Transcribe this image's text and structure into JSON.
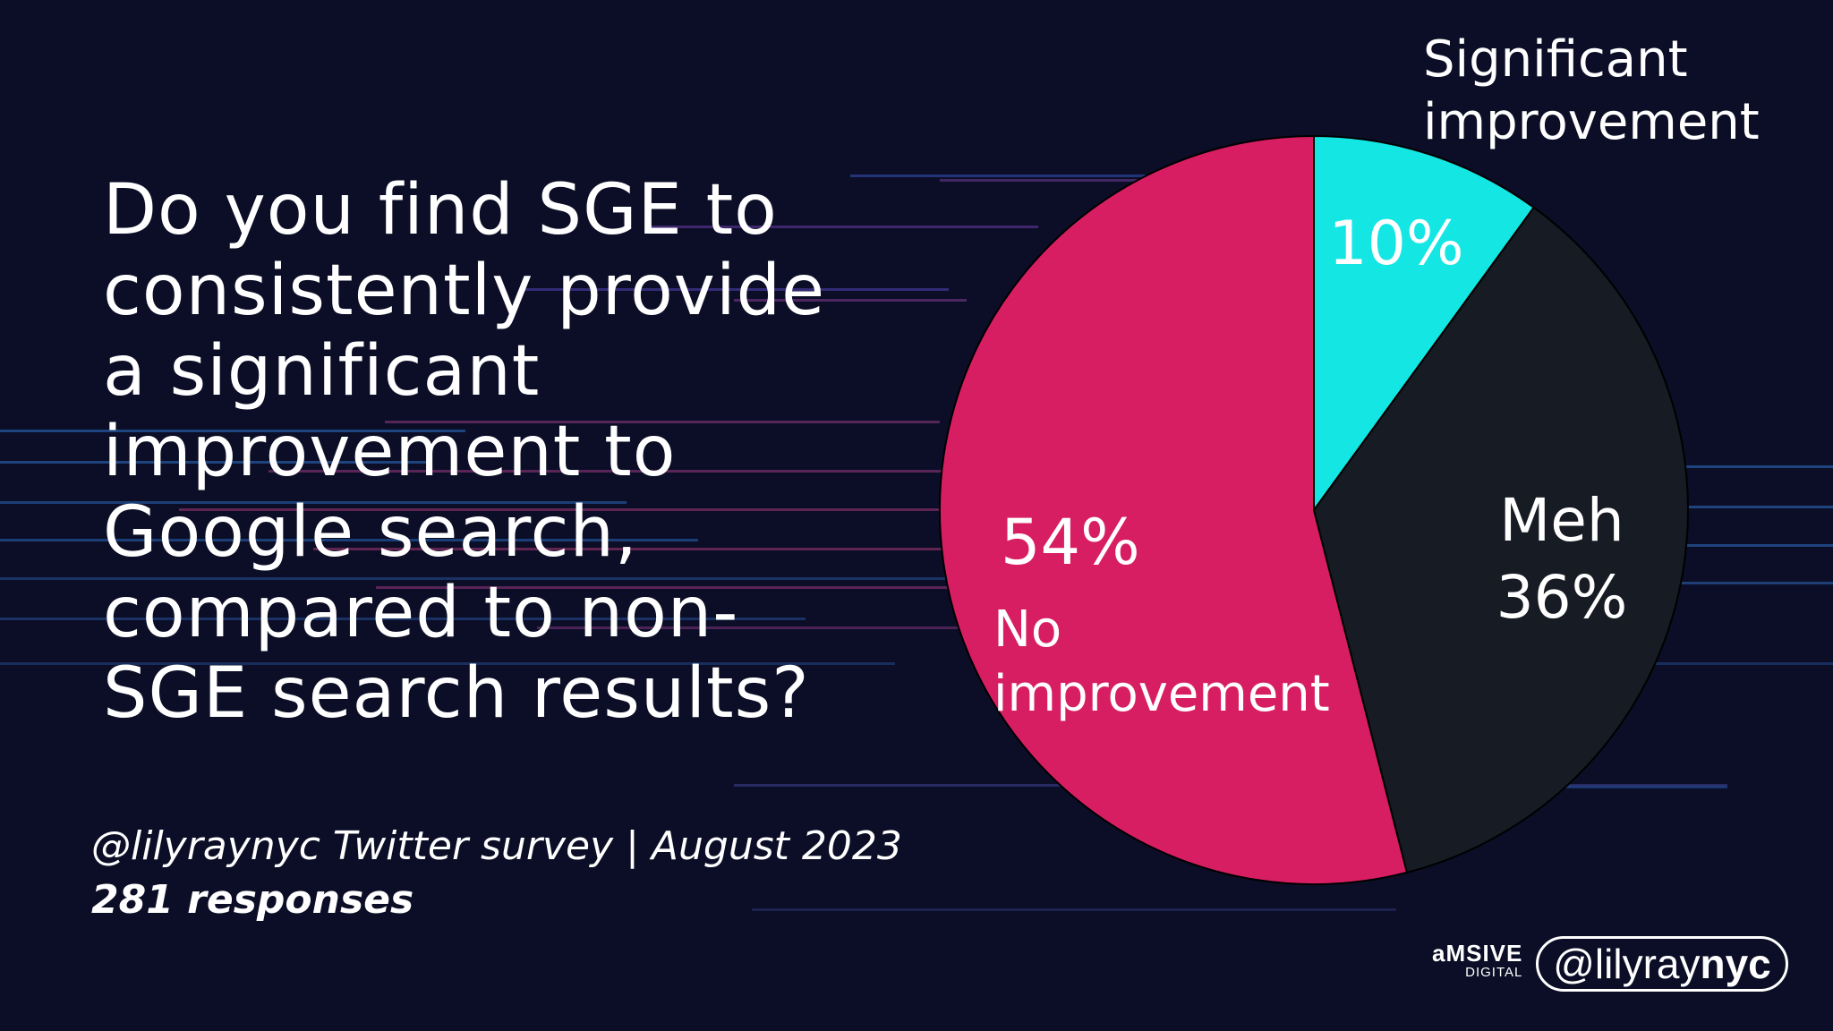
{
  "question_lines": [
    "Do you find SGE to",
    "consistently provide",
    "a significant",
    "improvement to",
    "Google search,",
    "compared to non-",
    "SGE search results?"
  ],
  "source": "@lilyraynyc Twitter survey | August 2023",
  "responses": "281 responses",
  "brand": {
    "name": "aMSIVE",
    "sub": "DIGITAL"
  },
  "handle": {
    "prefix": "@lily",
    "middle": "ray",
    "suffix": "nyc"
  },
  "colors": {
    "background": "#0b0e26",
    "significant": "#14e6e4",
    "meh": "#161b24",
    "no_improvement": "#d81e63"
  },
  "chart_data": {
    "type": "pie",
    "title": "",
    "slices": [
      {
        "label_lines": [
          "Significant",
          "improvement"
        ],
        "value": 10,
        "value_label": "10%",
        "color": "#14e6e4"
      },
      {
        "label_lines": [
          "Meh"
        ],
        "value": 36,
        "value_label": "36%",
        "color": "#161b24"
      },
      {
        "label_lines": [
          "No",
          "improvement"
        ],
        "value": 54,
        "value_label": "54%",
        "color": "#d81e63"
      }
    ],
    "start": "top, clockwise",
    "legend": "none (labels on/near slices)"
  }
}
